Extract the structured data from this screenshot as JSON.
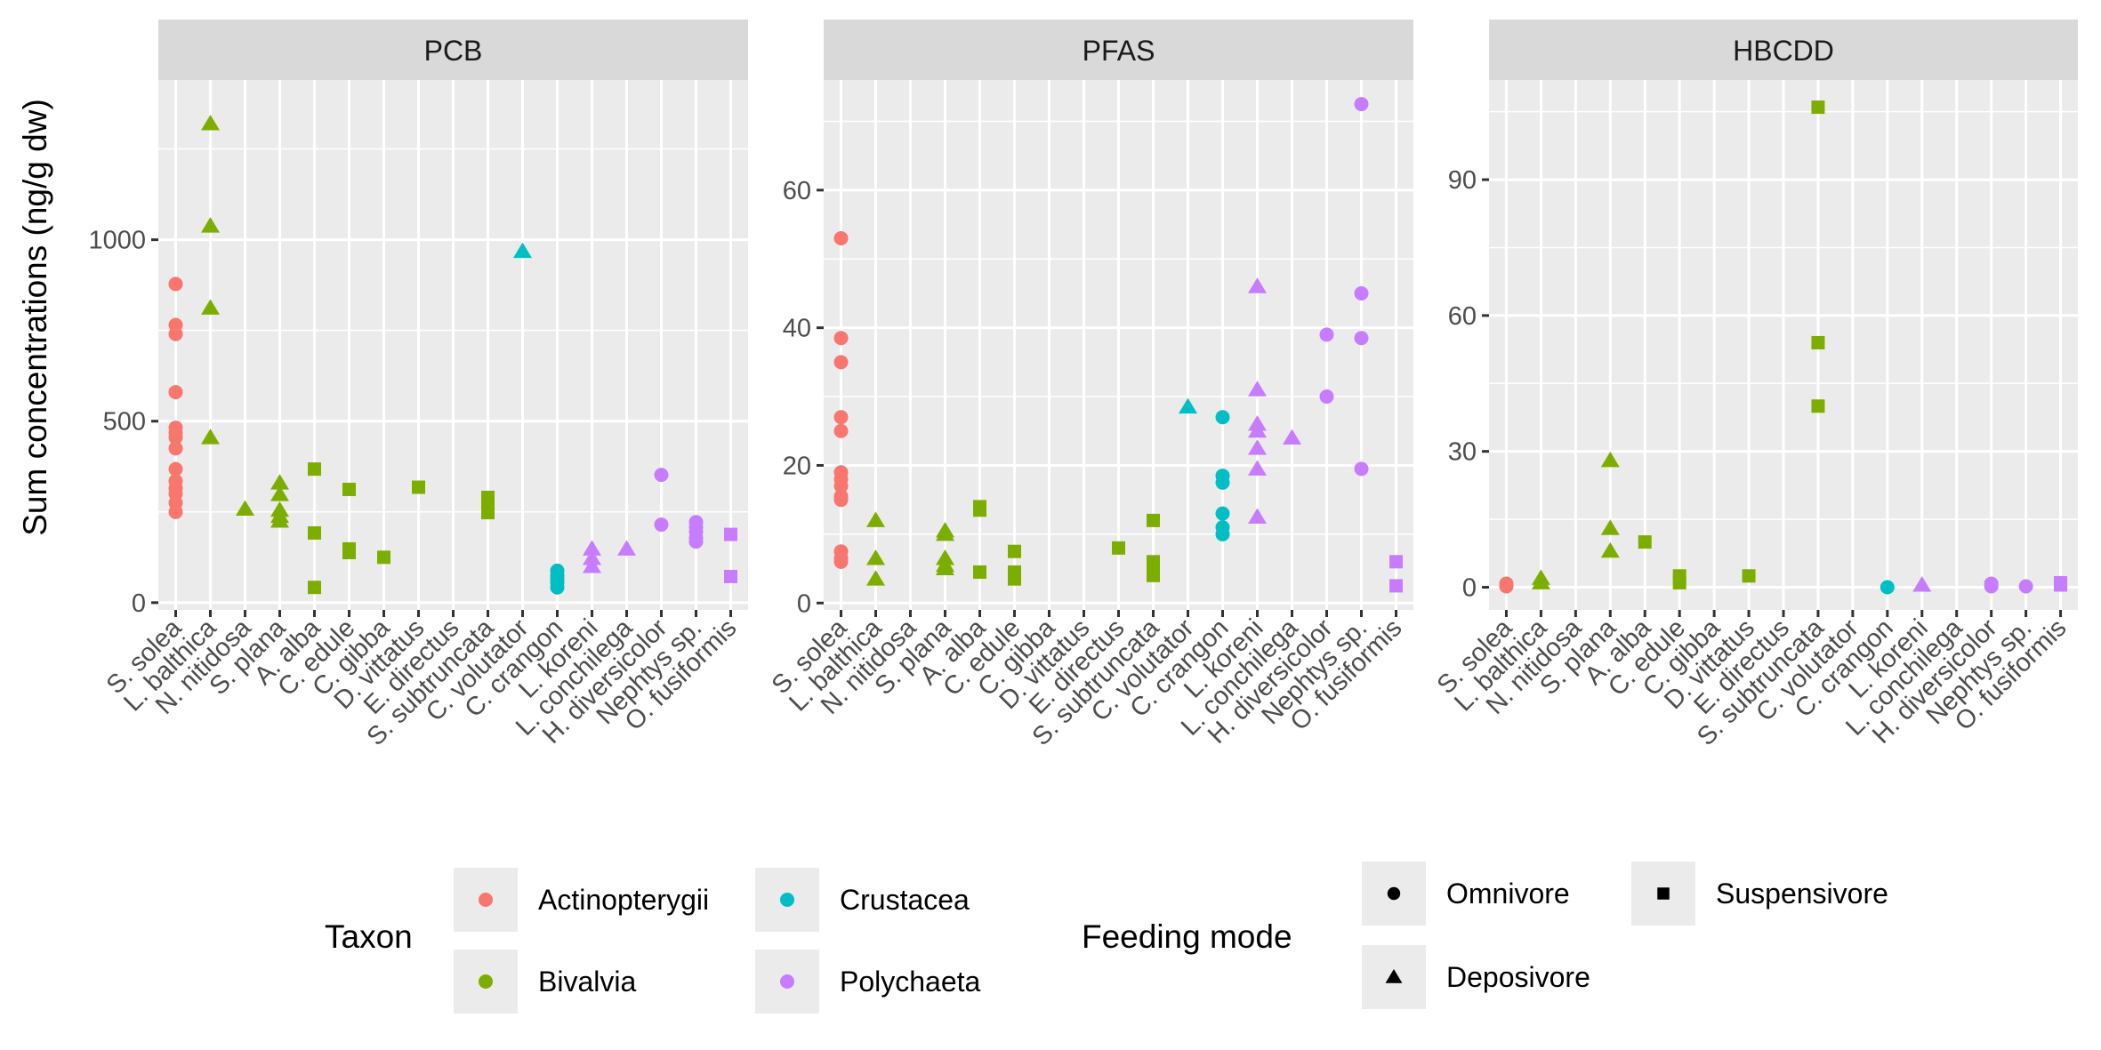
{
  "chart_data": {
    "type": "scatter",
    "ylabel": "Sum concentrations (ng/g dw)",
    "categories": [
      "S. solea",
      "L. balthica",
      "N. nitidosa",
      "S. plana",
      "A. alba",
      "C. edule",
      "C. gibba",
      "D. vittatus",
      "E. directus",
      "S. subtruncata",
      "C. volutator",
      "C. crangon",
      "L. koreni",
      "L. conchilega",
      "H. diversicolor",
      "Nephtys sp.",
      "O. fusiformis"
    ],
    "panels": [
      {
        "title": "PCB",
        "ylim": [
          -20,
          1440
        ],
        "yticks": [
          0,
          500,
          1000
        ],
        "points": [
          {
            "cat": "S. solea",
            "taxon": "Actinopterygii",
            "mode": "Omnivore",
            "values": [
              878,
              765,
              740,
              580,
              482,
              468,
              455,
              425,
              368,
              335,
              315,
              300,
              275,
              250
            ]
          },
          {
            "cat": "L. balthica",
            "taxon": "Bivalvia",
            "mode": "Deposivore",
            "values": [
              1320,
              1038,
              812,
              455
            ]
          },
          {
            "cat": "N. nitidosa",
            "taxon": "Bivalvia",
            "mode": "Deposivore",
            "values": [
              258
            ]
          },
          {
            "cat": "S. plana",
            "taxon": "Bivalvia",
            "mode": "Deposivore",
            "values": [
              330,
              298,
              255,
              238,
              225
            ]
          },
          {
            "cat": "A. alba",
            "taxon": "Bivalvia",
            "mode": "Suspensivore",
            "values": [
              368,
              192,
              42
            ]
          },
          {
            "cat": "C. edule",
            "taxon": "Bivalvia",
            "mode": "Suspensivore",
            "values": [
              312,
              148,
              138
            ]
          },
          {
            "cat": "C. gibba",
            "taxon": "Bivalvia",
            "mode": "Suspensivore",
            "values": [
              125
            ]
          },
          {
            "cat": "D. vittatus",
            "taxon": "Bivalvia",
            "mode": "Suspensivore",
            "values": [
              318
            ]
          },
          {
            "cat": "S. subtruncata",
            "taxon": "Bivalvia",
            "mode": "Suspensivore",
            "values": [
              290,
              268,
              248
            ]
          },
          {
            "cat": "C. volutator",
            "taxon": "Crustacea",
            "mode": "Deposivore",
            "values": [
              968
            ]
          },
          {
            "cat": "C. crangon",
            "taxon": "Crustacea",
            "mode": "Omnivore",
            "values": [
              88,
              75,
              65,
              55,
              42
            ]
          },
          {
            "cat": "L. koreni",
            "taxon": "Polychaeta",
            "mode": "Deposivore",
            "values": [
              148,
              122,
              100
            ]
          },
          {
            "cat": "L. conchilega",
            "taxon": "Polychaeta",
            "mode": "Deposivore",
            "values": [
              148
            ]
          },
          {
            "cat": "H. diversicolor",
            "taxon": "Polychaeta",
            "mode": "Omnivore",
            "values": [
              352,
              215
            ]
          },
          {
            "cat": "Nephtys sp.",
            "taxon": "Polychaeta",
            "mode": "Omnivore",
            "values": [
              222,
              208,
              195,
              178,
              168
            ]
          },
          {
            "cat": "O. fusiformis",
            "taxon": "Polychaeta",
            "mode": "Suspensivore",
            "values": [
              188,
              72
            ]
          }
        ]
      },
      {
        "title": "PFAS",
        "ylim": [
          -1,
          76
        ],
        "yticks": [
          0,
          20,
          40,
          60
        ],
        "points": [
          {
            "cat": "S. solea",
            "taxon": "Actinopterygii",
            "mode": "Omnivore",
            "values": [
              53,
              38.5,
              35,
              27,
              25,
              19,
              18,
              17,
              15.5,
              15,
              7.5,
              6.5,
              6
            ]
          },
          {
            "cat": "L. balthica",
            "taxon": "Bivalvia",
            "mode": "Deposivore",
            "values": [
              12,
              6.5,
              3.5
            ]
          },
          {
            "cat": "S. plana",
            "taxon": "Bivalvia",
            "mode": "Deposivore",
            "values": [
              10.5,
              10,
              6.5,
              5.5,
              5
            ]
          },
          {
            "cat": "A. alba",
            "taxon": "Bivalvia",
            "mode": "Suspensivore",
            "values": [
              14,
              13.5,
              4.5
            ]
          },
          {
            "cat": "C. edule",
            "taxon": "Bivalvia",
            "mode": "Suspensivore",
            "values": [
              7.5,
              4.5,
              3.5
            ]
          },
          {
            "cat": "E. directus",
            "taxon": "Bivalvia",
            "mode": "Suspensivore",
            "values": [
              8
            ]
          },
          {
            "cat": "S. subtruncata",
            "taxon": "Bivalvia",
            "mode": "Suspensivore",
            "values": [
              12,
              6,
              5,
              4
            ]
          },
          {
            "cat": "C. volutator",
            "taxon": "Crustacea",
            "mode": "Deposivore",
            "values": [
              28.5
            ]
          },
          {
            "cat": "C. crangon",
            "taxon": "Crustacea",
            "mode": "Omnivore",
            "values": [
              27,
              18.5,
              17.5,
              13,
              11,
              10
            ]
          },
          {
            "cat": "L. koreni",
            "taxon": "Polychaeta",
            "mode": "Deposivore",
            "values": [
              46,
              31,
              26,
              25,
              22.5,
              19.5,
              12.5
            ]
          },
          {
            "cat": "L. conchilega",
            "taxon": "Polychaeta",
            "mode": "Deposivore",
            "values": [
              24
            ]
          },
          {
            "cat": "H. diversicolor",
            "taxon": "Polychaeta",
            "mode": "Omnivore",
            "values": [
              39,
              30
            ]
          },
          {
            "cat": "Nephtys sp.",
            "taxon": "Polychaeta",
            "mode": "Omnivore",
            "values": [
              72.5,
              45,
              38.5,
              19.5
            ]
          },
          {
            "cat": "O. fusiformis",
            "taxon": "Polychaeta",
            "mode": "Suspensivore",
            "values": [
              6,
              2.5
            ]
          }
        ]
      },
      {
        "title": "HBCDD",
        "ylim": [
          -5,
          112
        ],
        "yticks": [
          0,
          30,
          60,
          90
        ],
        "points": [
          {
            "cat": "S. solea",
            "taxon": "Actinopterygii",
            "mode": "Omnivore",
            "values": [
              0.8,
              0.2
            ]
          },
          {
            "cat": "L. balthica",
            "taxon": "Bivalvia",
            "mode": "Deposivore",
            "values": [
              2,
              1
            ]
          },
          {
            "cat": "S. plana",
            "taxon": "Bivalvia",
            "mode": "Deposivore",
            "values": [
              28,
              13,
              8
            ]
          },
          {
            "cat": "A. alba",
            "taxon": "Bivalvia",
            "mode": "Suspensivore",
            "values": [
              10
            ]
          },
          {
            "cat": "C. edule",
            "taxon": "Bivalvia",
            "mode": "Suspensivore",
            "values": [
              2.5,
              1
            ]
          },
          {
            "cat": "D. vittatus",
            "taxon": "Bivalvia",
            "mode": "Suspensivore",
            "values": [
              2.5
            ]
          },
          {
            "cat": "S. subtruncata",
            "taxon": "Bivalvia",
            "mode": "Suspensivore",
            "values": [
              106,
              54,
              40
            ]
          },
          {
            "cat": "C. crangon",
            "taxon": "Crustacea",
            "mode": "Omnivore",
            "values": [
              0
            ]
          },
          {
            "cat": "L. koreni",
            "taxon": "Polychaeta",
            "mode": "Deposivore",
            "values": [
              0.5
            ]
          },
          {
            "cat": "H. diversicolor",
            "taxon": "Polychaeta",
            "mode": "Omnivore",
            "values": [
              0.8,
              0.2
            ]
          },
          {
            "cat": "Nephtys sp.",
            "taxon": "Polychaeta",
            "mode": "Omnivore",
            "values": [
              0.2
            ]
          },
          {
            "cat": "O. fusiformis",
            "taxon": "Polychaeta",
            "mode": "Suspensivore",
            "values": [
              1,
              0.5
            ]
          }
        ]
      }
    ],
    "legend": {
      "taxon": {
        "title": "Taxon",
        "entries": [
          {
            "label": "Actinopterygii",
            "color": "#F8766D"
          },
          {
            "label": "Bivalvia",
            "color": "#7CAE00"
          },
          {
            "label": "Crustacea",
            "color": "#00BFC4"
          },
          {
            "label": "Polychaeta",
            "color": "#C77CFF"
          }
        ]
      },
      "feeding": {
        "title": "Feeding mode",
        "entries": [
          {
            "label": "Omnivore",
            "shape": "circle"
          },
          {
            "label": "Deposivore",
            "shape": "triangle"
          },
          {
            "label": "Suspensivore",
            "shape": "square"
          }
        ]
      },
      "position": "bottom"
    },
    "grid": true
  }
}
